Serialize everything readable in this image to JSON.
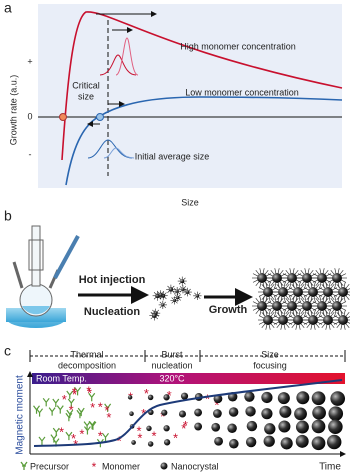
{
  "panel_a": {
    "label": "a",
    "y_axis_label": "Growth rate (a.u.)",
    "x_axis_label": "Size",
    "y_marks": [
      "+",
      "0",
      "-"
    ],
    "high_curve_label": "High monomer concentration",
    "low_curve_label": "Low monomer concentration",
    "critical_size_label": [
      "Critical",
      "size"
    ],
    "initial_size_label": "Initial average size"
  },
  "panel_b": {
    "label": "b",
    "step1_top": "Hot injection",
    "step1_bottom": "Nucleation",
    "step2": "Growth"
  },
  "panel_c": {
    "label": "c",
    "stages": [
      [
        "Thermal",
        "decomposition"
      ],
      [
        "Burst",
        "nucleation"
      ],
      [
        "Size",
        "focusing"
      ]
    ],
    "temp_start": "Room Temp.",
    "temp_end": "320°C",
    "y_axis_label": "Magnetic moment",
    "x_axis_label": "Time",
    "legend": [
      "Precursor",
      "Monomer",
      "Nanocrystal"
    ]
  }
}
